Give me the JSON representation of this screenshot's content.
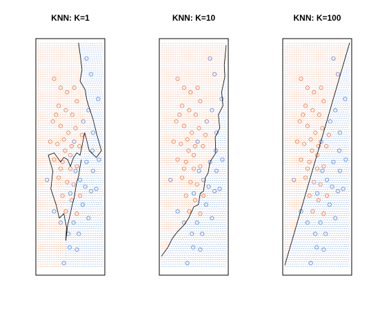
{
  "colors": {
    "class_a": "#f58c5f",
    "class_b": "#6f9be0",
    "boundary": "#000000",
    "frame": "#000000"
  },
  "chart_data": [
    {
      "type": "scatter",
      "title": "KNN: K=1",
      "k": 1,
      "xlabel": "",
      "ylabel": "",
      "xlim": [
        -1,
        1
      ],
      "ylim": [
        -1,
        1
      ],
      "axes_shown": false,
      "background": "dense dashed grid colored by predicted class",
      "boundary": [
        [
          0.25,
          1.0
        ],
        [
          0.3,
          0.9
        ],
        [
          0.36,
          0.76
        ],
        [
          0.3,
          0.66
        ],
        [
          0.46,
          0.58
        ],
        [
          0.5,
          0.5
        ],
        [
          0.56,
          0.44
        ],
        [
          0.7,
          0.32
        ],
        [
          0.82,
          0.18
        ],
        [
          0.96,
          0.04
        ],
        [
          0.8,
          -0.02
        ],
        [
          0.58,
          0.04
        ],
        [
          0.5,
          0.14
        ],
        [
          0.44,
          0.2
        ],
        [
          0.36,
          0.08
        ],
        [
          0.3,
          0.0
        ],
        [
          0.2,
          0.02
        ],
        [
          0.1,
          -0.02
        ],
        [
          0.0,
          -0.1
        ],
        [
          -0.08,
          -0.04
        ],
        [
          -0.2,
          -0.02
        ],
        [
          -0.3,
          -0.06
        ],
        [
          -0.5,
          0.02
        ],
        [
          -0.68,
          0.0
        ],
        [
          -0.54,
          -0.14
        ],
        [
          -0.6,
          -0.3
        ],
        [
          -0.44,
          -0.44
        ],
        [
          -0.34,
          -0.56
        ],
        [
          -0.2,
          -0.52
        ],
        [
          -0.12,
          -0.64
        ],
        [
          -0.14,
          -0.76
        ],
        [
          -0.08,
          -0.62
        ],
        [
          0.0,
          -0.52
        ],
        [
          0.06,
          -0.44
        ],
        [
          0.12,
          -0.38
        ],
        [
          0.16,
          -0.3
        ],
        [
          0.2,
          -0.24
        ],
        [
          0.26,
          -0.18
        ],
        [
          0.3,
          -0.1
        ],
        [
          0.34,
          -0.04
        ]
      ],
      "class_a_points": [
        [
          -0.5,
          0.68
        ],
        [
          -0.3,
          0.6
        ],
        [
          -0.1,
          0.56
        ],
        [
          0.12,
          0.6
        ],
        [
          0.2,
          0.48
        ],
        [
          -0.36,
          0.44
        ],
        [
          -0.14,
          0.4
        ],
        [
          0.06,
          0.36
        ],
        [
          -0.54,
          0.3
        ],
        [
          -0.3,
          0.26
        ],
        [
          -0.06,
          0.2
        ],
        [
          0.16,
          0.24
        ],
        [
          0.36,
          0.18
        ],
        [
          -0.62,
          0.12
        ],
        [
          -0.4,
          0.1
        ],
        [
          -0.16,
          0.04
        ],
        [
          0.04,
          0.08
        ],
        [
          0.28,
          0.08
        ],
        [
          -0.5,
          -0.04
        ],
        [
          -0.24,
          -0.06
        ],
        [
          0.0,
          -0.12
        ],
        [
          0.2,
          -0.1
        ],
        [
          -0.36,
          -0.2
        ],
        [
          -0.1,
          -0.24
        ],
        [
          0.1,
          -0.26
        ],
        [
          -0.24,
          -0.36
        ],
        [
          0.04,
          -0.4
        ],
        [
          0.3,
          -0.36
        ],
        [
          -0.14,
          -0.5
        ],
        [
          0.2,
          -0.52
        ],
        [
          -0.44,
          0.36
        ],
        [
          -0.2,
          0.14
        ],
        [
          0.0,
          0.0
        ],
        [
          -0.3,
          -0.12
        ]
      ],
      "class_b_points": [
        [
          0.5,
          0.86
        ],
        [
          0.64,
          0.72
        ],
        [
          0.86,
          0.5
        ],
        [
          0.56,
          0.4
        ],
        [
          0.7,
          0.2
        ],
        [
          0.4,
          0.3
        ],
        [
          0.5,
          -0.06
        ],
        [
          0.7,
          -0.14
        ],
        [
          0.88,
          -0.04
        ],
        [
          0.3,
          -0.22
        ],
        [
          0.46,
          -0.28
        ],
        [
          0.64,
          -0.32
        ],
        [
          0.8,
          -0.3
        ],
        [
          0.16,
          -0.14
        ],
        [
          0.38,
          -0.44
        ],
        [
          0.1,
          -0.6
        ],
        [
          0.26,
          -0.7
        ],
        [
          -0.06,
          -0.7
        ],
        [
          -0.3,
          -0.6
        ],
        [
          -0.5,
          -0.5
        ],
        [
          -0.72,
          -0.22
        ],
        [
          0.56,
          -0.56
        ],
        [
          0.2,
          -0.84
        ],
        [
          -0.2,
          -0.96
        ],
        [
          0.0,
          -0.34
        ],
        [
          0.12,
          0.12
        ],
        [
          -0.02,
          -0.82
        ],
        [
          0.68,
          0.04
        ]
      ]
    },
    {
      "type": "scatter",
      "title": "KNN: K=10",
      "k": 10,
      "xlabel": "",
      "ylabel": "",
      "xlim": [
        -1,
        1
      ],
      "ylim": [
        -1,
        1
      ],
      "axes_shown": false,
      "background": "dense dashed grid colored by predicted class",
      "boundary": [
        [
          1.0,
          0.98
        ],
        [
          0.94,
          0.8
        ],
        [
          0.96,
          0.7
        ],
        [
          0.86,
          0.56
        ],
        [
          0.9,
          0.44
        ],
        [
          0.76,
          0.36
        ],
        [
          0.8,
          0.24
        ],
        [
          0.66,
          0.16
        ],
        [
          0.68,
          0.02
        ],
        [
          0.5,
          -0.06
        ],
        [
          0.44,
          -0.16
        ],
        [
          0.36,
          -0.2
        ],
        [
          0.3,
          -0.32
        ],
        [
          0.2,
          -0.34
        ],
        [
          0.14,
          -0.44
        ],
        [
          0.0,
          -0.46
        ],
        [
          -0.16,
          -0.56
        ],
        [
          -0.3,
          -0.62
        ],
        [
          -0.5,
          -0.68
        ],
        [
          -0.66,
          -0.74
        ],
        [
          -0.8,
          -0.82
        ],
        [
          -1.0,
          -0.9
        ]
      ],
      "class_a_points": [
        [
          -0.5,
          0.68
        ],
        [
          -0.3,
          0.6
        ],
        [
          -0.1,
          0.56
        ],
        [
          0.12,
          0.6
        ],
        [
          0.2,
          0.48
        ],
        [
          -0.36,
          0.44
        ],
        [
          -0.14,
          0.4
        ],
        [
          0.06,
          0.36
        ],
        [
          -0.54,
          0.3
        ],
        [
          -0.3,
          0.26
        ],
        [
          -0.06,
          0.2
        ],
        [
          0.16,
          0.24
        ],
        [
          0.36,
          0.18
        ],
        [
          -0.62,
          0.12
        ],
        [
          -0.4,
          0.1
        ],
        [
          -0.16,
          0.04
        ],
        [
          0.04,
          0.08
        ],
        [
          0.28,
          0.08
        ],
        [
          -0.5,
          -0.04
        ],
        [
          -0.24,
          -0.06
        ],
        [
          0.0,
          -0.12
        ],
        [
          0.2,
          -0.1
        ],
        [
          -0.36,
          -0.2
        ],
        [
          -0.1,
          -0.24
        ],
        [
          0.1,
          -0.26
        ],
        [
          -0.24,
          -0.36
        ],
        [
          0.04,
          -0.4
        ],
        [
          0.3,
          -0.36
        ],
        [
          -0.14,
          -0.5
        ],
        [
          0.2,
          -0.52
        ],
        [
          -0.44,
          0.36
        ],
        [
          -0.2,
          0.14
        ],
        [
          0.0,
          0.0
        ],
        [
          -0.3,
          -0.12
        ]
      ],
      "class_b_points": [
        [
          0.5,
          0.86
        ],
        [
          0.64,
          0.72
        ],
        [
          0.86,
          0.5
        ],
        [
          0.56,
          0.4
        ],
        [
          0.7,
          0.2
        ],
        [
          0.4,
          0.3
        ],
        [
          0.5,
          -0.06
        ],
        [
          0.7,
          -0.14
        ],
        [
          0.88,
          -0.04
        ],
        [
          0.3,
          -0.22
        ],
        [
          0.46,
          -0.28
        ],
        [
          0.64,
          -0.32
        ],
        [
          0.8,
          -0.3
        ],
        [
          0.16,
          -0.14
        ],
        [
          0.38,
          -0.44
        ],
        [
          0.1,
          -0.6
        ],
        [
          0.26,
          -0.7
        ],
        [
          -0.06,
          -0.7
        ],
        [
          -0.3,
          -0.6
        ],
        [
          -0.5,
          -0.5
        ],
        [
          -0.72,
          -0.22
        ],
        [
          0.56,
          -0.56
        ],
        [
          0.2,
          -0.84
        ],
        [
          -0.2,
          -0.96
        ],
        [
          0.0,
          -0.34
        ],
        [
          0.12,
          0.12
        ],
        [
          -0.02,
          -0.82
        ],
        [
          0.68,
          0.04
        ]
      ]
    },
    {
      "type": "scatter",
      "title": "KNN: K=100",
      "k": 100,
      "xlabel": "",
      "ylabel": "",
      "xlim": [
        -1,
        1
      ],
      "ylim": [
        -1,
        1
      ],
      "axes_shown": false,
      "background": "dense dashed grid colored by predicted class",
      "boundary": [
        [
          1.0,
          1.0
        ],
        [
          -1.0,
          -0.98
        ]
      ],
      "class_a_points": [
        [
          -0.5,
          0.68
        ],
        [
          -0.3,
          0.6
        ],
        [
          -0.1,
          0.56
        ],
        [
          0.12,
          0.6
        ],
        [
          0.2,
          0.48
        ],
        [
          -0.36,
          0.44
        ],
        [
          -0.14,
          0.4
        ],
        [
          0.06,
          0.36
        ],
        [
          -0.54,
          0.3
        ],
        [
          -0.3,
          0.26
        ],
        [
          -0.06,
          0.2
        ],
        [
          0.16,
          0.24
        ],
        [
          0.36,
          0.18
        ],
        [
          -0.62,
          0.12
        ],
        [
          -0.4,
          0.1
        ],
        [
          -0.16,
          0.04
        ],
        [
          0.04,
          0.08
        ],
        [
          0.28,
          0.08
        ],
        [
          -0.5,
          -0.04
        ],
        [
          -0.24,
          -0.06
        ],
        [
          0.0,
          -0.12
        ],
        [
          0.2,
          -0.1
        ],
        [
          -0.36,
          -0.2
        ],
        [
          -0.1,
          -0.24
        ],
        [
          0.1,
          -0.26
        ],
        [
          -0.24,
          -0.36
        ],
        [
          0.04,
          -0.4
        ],
        [
          0.3,
          -0.36
        ],
        [
          -0.14,
          -0.5
        ],
        [
          0.2,
          -0.52
        ],
        [
          -0.44,
          0.36
        ],
        [
          -0.2,
          0.14
        ],
        [
          0.0,
          0.0
        ],
        [
          -0.3,
          -0.12
        ]
      ],
      "class_b_points": [
        [
          0.5,
          0.86
        ],
        [
          0.64,
          0.72
        ],
        [
          0.86,
          0.5
        ],
        [
          0.56,
          0.4
        ],
        [
          0.7,
          0.2
        ],
        [
          0.4,
          0.3
        ],
        [
          0.5,
          -0.06
        ],
        [
          0.7,
          -0.14
        ],
        [
          0.88,
          -0.04
        ],
        [
          0.3,
          -0.22
        ],
        [
          0.46,
          -0.28
        ],
        [
          0.64,
          -0.32
        ],
        [
          0.8,
          -0.3
        ],
        [
          0.16,
          -0.14
        ],
        [
          0.38,
          -0.44
        ],
        [
          0.1,
          -0.6
        ],
        [
          0.26,
          -0.7
        ],
        [
          -0.06,
          -0.7
        ],
        [
          -0.3,
          -0.6
        ],
        [
          -0.5,
          -0.5
        ],
        [
          -0.72,
          -0.22
        ],
        [
          0.56,
          -0.56
        ],
        [
          0.2,
          -0.84
        ],
        [
          -0.2,
          -0.96
        ],
        [
          0.0,
          -0.34
        ],
        [
          0.12,
          0.12
        ],
        [
          -0.02,
          -0.82
        ],
        [
          0.68,
          0.04
        ]
      ]
    }
  ]
}
